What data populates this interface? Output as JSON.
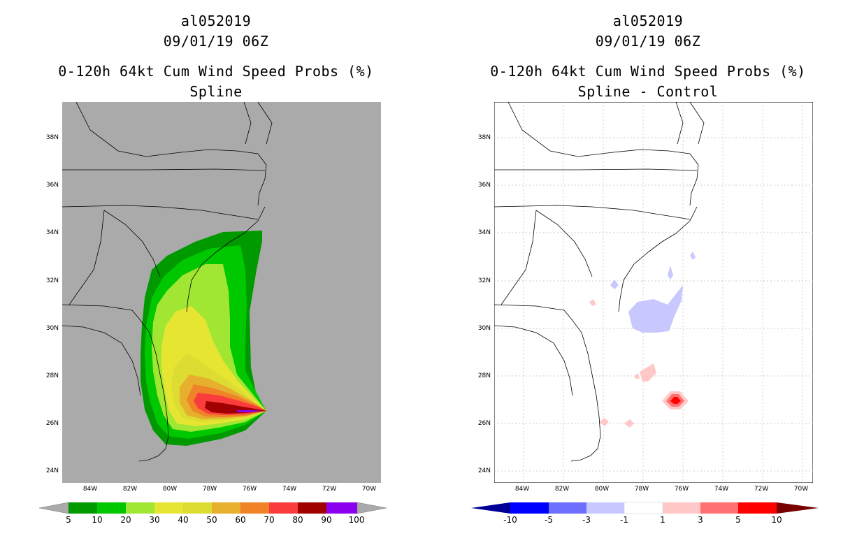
{
  "colors": {
    "land_gray": "#aaaaaa",
    "prob_levels": [
      "#009a00",
      "#00c800",
      "#a0e632",
      "#e6e632",
      "#dcdc32",
      "#e6af2d",
      "#f08228",
      "#fa3c3c",
      "#a00000",
      "#8c00f0"
    ],
    "diff_levels": [
      "#000096",
      "#0000ff",
      "#6e6eff",
      "#c8c8ff",
      "#ffffff",
      "#ffc8c8",
      "#ff7070",
      "#ff0000",
      "#780000"
    ]
  },
  "panels": {
    "left": {
      "storm_id": "al052019",
      "datetime": "09/01/19 06Z",
      "product": "0-120h 64kt Cum Wind Speed Probs (%)",
      "subtitle": "Spline",
      "colorbar_labels": [
        "5",
        "10",
        "20",
        "30",
        "40",
        "50",
        "60",
        "70",
        "80",
        "90",
        "100"
      ]
    },
    "right": {
      "storm_id": "al052019",
      "datetime": "09/01/19 06Z",
      "product": "0-120h 64kt Cum Wind Speed Probs (%)",
      "subtitle": "Spline - Control",
      "colorbar_labels": [
        "-10",
        "-5",
        "-3",
        "-1",
        "1",
        "3",
        "5",
        "10"
      ]
    }
  },
  "axes": {
    "lat_labels": [
      "38N",
      "36N",
      "34N",
      "32N",
      "30N",
      "28N",
      "26N",
      "24N"
    ],
    "lon_labels": [
      "84W",
      "82W",
      "80W",
      "78W",
      "76W",
      "74W",
      "72W",
      "70W"
    ],
    "lat_range": [
      23.5,
      39.5
    ],
    "lon_range": [
      -85.8,
      -69.8
    ]
  }
}
